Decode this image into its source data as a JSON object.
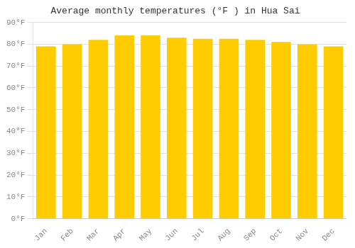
{
  "chart_data": {
    "type": "bar",
    "title": "Average monthly temperatures (°F ) in Hua Sai",
    "categories": [
      "Jan",
      "Feb",
      "Mar",
      "Apr",
      "May",
      "Jun",
      "Jul",
      "Aug",
      "Sep",
      "Oct",
      "Nov",
      "Dec"
    ],
    "values": [
      79,
      80,
      82,
      84,
      84,
      83,
      82.5,
      82.5,
      82,
      81,
      80,
      79
    ],
    "color": "#FFCC00",
    "ylim": [
      0,
      90
    ],
    "yticks": [
      {
        "value": 0,
        "label": "0°F"
      },
      {
        "value": 10,
        "label": "10°F"
      },
      {
        "value": 20,
        "label": "20°F"
      },
      {
        "value": 30,
        "label": "30°F"
      },
      {
        "value": 40,
        "label": "40°F"
      },
      {
        "value": 50,
        "label": "50°F"
      },
      {
        "value": 60,
        "label": "60°F"
      },
      {
        "value": 70,
        "label": "70°F"
      },
      {
        "value": 80,
        "label": "80°F"
      },
      {
        "value": 90,
        "label": "90°F"
      }
    ],
    "grid": "y"
  }
}
